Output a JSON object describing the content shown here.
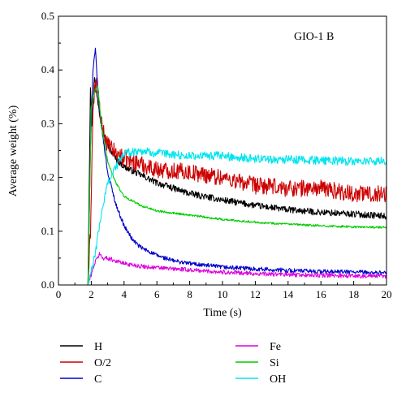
{
  "chart_data": {
    "type": "line",
    "annotation": "GIO-1 B",
    "xlabel": "Time (s)",
    "ylabel": "Average weight (%)",
    "xlim": [
      0,
      20
    ],
    "ylim": [
      0,
      0.5
    ],
    "x_ticks": [
      "0",
      "2",
      "4",
      "6",
      "8",
      "10",
      "12",
      "14",
      "16",
      "18",
      "20"
    ],
    "y_ticks": [
      "0.0",
      "0.1",
      "0.2",
      "0.3",
      "0.4",
      "0.5"
    ],
    "grid": false,
    "legend_position": "below",
    "series": [
      {
        "name": "H",
        "color": "#000000",
        "noise": 0.006,
        "x": [
          0,
          1.8,
          1.95,
          2.05,
          2.2,
          2.35,
          2.6,
          3,
          3.5,
          4,
          5,
          6,
          7,
          8,
          10,
          12,
          14,
          16,
          18,
          20
        ],
        "y": [
          0,
          0,
          0.37,
          0.3,
          0.39,
          0.35,
          0.3,
          0.26,
          0.235,
          0.22,
          0.205,
          0.19,
          0.18,
          0.17,
          0.158,
          0.148,
          0.14,
          0.135,
          0.132,
          0.128
        ]
      },
      {
        "name": "O/2",
        "color": "#cc0000",
        "noise": 0.016,
        "x": [
          0,
          1.8,
          1.95,
          2.1,
          2.2,
          2.35,
          2.6,
          3,
          3.5,
          4,
          5,
          6,
          8,
          10,
          12,
          14,
          16,
          18,
          20
        ],
        "y": [
          0,
          0,
          0.1,
          0.32,
          0.36,
          0.38,
          0.3,
          0.26,
          0.245,
          0.235,
          0.225,
          0.215,
          0.21,
          0.2,
          0.185,
          0.18,
          0.18,
          0.17,
          0.17
        ]
      },
      {
        "name": "C",
        "color": "#0000cc",
        "noise": 0.004,
        "x": [
          0,
          1.8,
          1.95,
          2.1,
          2.25,
          2.4,
          2.6,
          3,
          3.5,
          4,
          4.5,
          5,
          6,
          7,
          8,
          10,
          12,
          14,
          16,
          18,
          20
        ],
        "y": [
          0,
          0,
          0.25,
          0.4,
          0.44,
          0.36,
          0.3,
          0.21,
          0.15,
          0.11,
          0.085,
          0.07,
          0.055,
          0.045,
          0.04,
          0.033,
          0.03,
          0.027,
          0.025,
          0.024,
          0.022
        ]
      },
      {
        "name": "Fe",
        "color": "#dd00dd",
        "noise": 0.004,
        "x": [
          0,
          1.8,
          2.0,
          2.2,
          2.5,
          2.7,
          3,
          3.5,
          4,
          5,
          6,
          8,
          10,
          12,
          14,
          16,
          18,
          20
        ],
        "y": [
          0,
          0,
          0.02,
          0.04,
          0.058,
          0.05,
          0.05,
          0.045,
          0.04,
          0.035,
          0.032,
          0.028,
          0.024,
          0.021,
          0.019,
          0.018,
          0.017,
          0.016
        ]
      },
      {
        "name": "Si",
        "color": "#00cc00",
        "noise": 0.002,
        "x": [
          0,
          1.8,
          2.0,
          2.2,
          2.4,
          2.6,
          3,
          3.5,
          4,
          5,
          6,
          8,
          10,
          12,
          14,
          16,
          18,
          20
        ],
        "y": [
          0,
          0,
          0.33,
          0.36,
          0.37,
          0.3,
          0.23,
          0.19,
          0.165,
          0.148,
          0.138,
          0.13,
          0.122,
          0.117,
          0.113,
          0.11,
          0.108,
          0.107
        ]
      },
      {
        "name": "OH",
        "color": "#00e5ee",
        "noise": 0.008,
        "x": [
          0,
          1.8,
          2.2,
          2.6,
          3,
          3.5,
          4,
          5,
          6,
          8,
          10,
          12,
          14,
          16,
          18,
          20
        ],
        "y": [
          0,
          0,
          0.05,
          0.13,
          0.19,
          0.22,
          0.245,
          0.25,
          0.245,
          0.24,
          0.24,
          0.235,
          0.233,
          0.232,
          0.23,
          0.23
        ]
      }
    ]
  }
}
